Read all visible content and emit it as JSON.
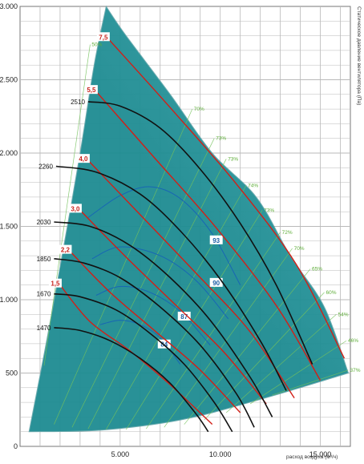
{
  "chart_data": {
    "type": "line",
    "xlabel": "расход воздуха (м³/ч)",
    "ylabel": "Статическое давление вентилятора (Па)",
    "xlim": [
      0,
      16500
    ],
    "ylim": [
      0,
      3000
    ],
    "x_ticks": [
      {
        "value": 5000,
        "label": "5.000"
      },
      {
        "value": 10000,
        "label": "10.000"
      },
      {
        "value": 15000,
        "label": "15.000"
      }
    ],
    "y_ticks": [
      {
        "value": 0,
        "label": "0"
      },
      {
        "value": 500,
        "label": "500"
      },
      {
        "value": 1000,
        "label": "1.000"
      },
      {
        "value": 1500,
        "label": "1.500"
      },
      {
        "value": 2000,
        "label": "2.000"
      },
      {
        "value": 2500,
        "label": "2.500"
      },
      {
        "value": 3000,
        "label": "3.000"
      }
    ],
    "grid": true,
    "envelope": {
      "left": [
        [
          450,
          100
        ],
        [
          1300,
          700
        ],
        [
          2100,
          1300
        ],
        [
          3000,
          2000
        ],
        [
          3700,
          2600
        ],
        [
          4300,
          3000
        ]
      ],
      "top": [
        [
          4300,
          3000
        ],
        [
          5300,
          2800
        ],
        [
          7500,
          2400
        ],
        [
          9600,
          2000
        ],
        [
          11800,
          1700
        ],
        [
          13500,
          1300
        ],
        [
          15200,
          950
        ],
        [
          16400,
          500
        ]
      ],
      "bottom": [
        [
          16400,
          500
        ],
        [
          12000,
          320
        ],
        [
          8000,
          180
        ],
        [
          4000,
          110
        ],
        [
          450,
          100
        ]
      ]
    },
    "speed_curves": [
      {
        "label": "1470",
        "points": [
          [
            1700,
            810
          ],
          [
            3000,
            790
          ],
          [
            4500,
            720
          ],
          [
            6000,
            600
          ],
          [
            7500,
            430
          ],
          [
            8800,
            220
          ],
          [
            9400,
            100
          ]
        ]
      },
      {
        "label": "1670",
        "points": [
          [
            1700,
            1040
          ],
          [
            3000,
            1020
          ],
          [
            4800,
            930
          ],
          [
            6500,
            770
          ],
          [
            8200,
            560
          ],
          [
            9700,
            300
          ],
          [
            10600,
            100
          ]
        ]
      },
      {
        "label": "1850",
        "points": [
          [
            1700,
            1280
          ],
          [
            3200,
            1250
          ],
          [
            5000,
            1150
          ],
          [
            7000,
            950
          ],
          [
            9000,
            690
          ],
          [
            10800,
            360
          ],
          [
            11700,
            130
          ]
        ]
      },
      {
        "label": "2030",
        "points": [
          [
            1700,
            1530
          ],
          [
            3500,
            1500
          ],
          [
            5500,
            1370
          ],
          [
            7500,
            1150
          ],
          [
            9500,
            860
          ],
          [
            11500,
            470
          ],
          [
            12600,
            200
          ]
        ]
      },
      {
        "label": "2260",
        "points": [
          [
            1800,
            1910
          ],
          [
            3800,
            1870
          ],
          [
            6000,
            1720
          ],
          [
            8000,
            1470
          ],
          [
            10000,
            1140
          ],
          [
            12000,
            720
          ],
          [
            13300,
            380
          ]
        ]
      },
      {
        "label": "2510",
        "points": [
          [
            3400,
            2350
          ],
          [
            5000,
            2320
          ],
          [
            7000,
            2170
          ],
          [
            9000,
            1890
          ],
          [
            11000,
            1520
          ],
          [
            12800,
            1100
          ],
          [
            14600,
            560
          ]
        ]
      }
    ],
    "power_curves": [
      {
        "label": "1,5",
        "points": [
          [
            2000,
            1100
          ],
          [
            3500,
            850
          ],
          [
            5500,
            650
          ],
          [
            7500,
            420
          ],
          [
            9600,
            150
          ]
        ]
      },
      {
        "label": "2,2",
        "points": [
          [
            2500,
            1330
          ],
          [
            4500,
            1050
          ],
          [
            6800,
            780
          ],
          [
            9000,
            520
          ],
          [
            11000,
            230
          ]
        ]
      },
      {
        "label": "3,0",
        "points": [
          [
            3000,
            1610
          ],
          [
            5300,
            1290
          ],
          [
            7800,
            960
          ],
          [
            10200,
            640
          ],
          [
            12300,
            290
          ]
        ]
      },
      {
        "label": "4,0",
        "points": [
          [
            3400,
            1950
          ],
          [
            6000,
            1580
          ],
          [
            8800,
            1180
          ],
          [
            11500,
            780
          ],
          [
            13700,
            330
          ]
        ]
      },
      {
        "label": "5,5",
        "points": [
          [
            3800,
            2420
          ],
          [
            6700,
            1970
          ],
          [
            9800,
            1490
          ],
          [
            12800,
            960
          ],
          [
            15000,
            450
          ]
        ]
      },
      {
        "label": "7,5",
        "points": [
          [
            4400,
            2780
          ],
          [
            7500,
            2310
          ],
          [
            10800,
            1790
          ],
          [
            13800,
            1240
          ],
          [
            16200,
            600
          ]
        ]
      }
    ],
    "efficiency_lines": [
      "50%",
      "70%",
      "73%",
      "73%",
      "74%",
      "73%",
      "72%",
      "70%",
      "65%",
      "60%",
      "54%",
      "46%",
      "37%"
    ],
    "sound_labels": [
      "93",
      "90",
      "87",
      "84"
    ],
    "sound_curves": [
      {
        "label": "84",
        "points": [
          [
            4000,
            830
          ],
          [
            5000,
            860
          ],
          [
            6000,
            830
          ],
          [
            7000,
            740
          ],
          [
            8000,
            560
          ]
        ]
      },
      {
        "label": "87",
        "points": [
          [
            3800,
            1030
          ],
          [
            5000,
            1090
          ],
          [
            6500,
            1050
          ],
          [
            8000,
            920
          ],
          [
            9500,
            690
          ]
        ]
      },
      {
        "label": "90",
        "points": [
          [
            3600,
            1280
          ],
          [
            5000,
            1360
          ],
          [
            7000,
            1300
          ],
          [
            8800,
            1130
          ],
          [
            10400,
            870
          ]
        ]
      },
      {
        "label": "93",
        "points": [
          [
            3400,
            1560
          ],
          [
            5000,
            1710
          ],
          [
            6500,
            1770
          ],
          [
            8000,
            1690
          ],
          [
            9600,
            1450
          ],
          [
            11000,
            1100
          ]
        ]
      }
    ],
    "colors": {
      "speed": "#111111",
      "power": "#d21f17",
      "efficiency": "#74c25c",
      "sound": "#1866b4",
      "grid": "#b9b9b9",
      "fill_dark": "#1e8c92",
      "fill_light": "#e7eef4"
    }
  }
}
